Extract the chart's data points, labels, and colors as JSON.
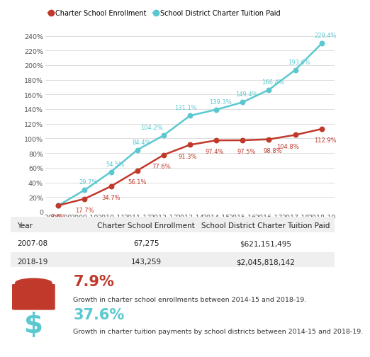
{
  "years": [
    "2008-09",
    "2009-10",
    "2010-11",
    "2011-12",
    "2012-13",
    "2013-14",
    "2014-15",
    "2015-16",
    "2016-17",
    "2017-18",
    "2018-19"
  ],
  "enrollment": [
    8.6,
    17.7,
    34.7,
    56.1,
    77.6,
    91.3,
    97.4,
    97.5,
    98.8,
    104.8,
    112.9
  ],
  "tuition": [
    8.6,
    29.7,
    54.5,
    84.4,
    104.2,
    131.1,
    139.3,
    149.4,
    166.4,
    193.6,
    229.4
  ],
  "enrollment_labels": [
    "8.6%",
    "17.7%",
    "34.7%",
    "56.1%",
    "77.6%",
    "91.3%",
    "97.4%",
    "97.5%",
    "98.8%",
    "104.8%",
    "112.9%"
  ],
  "tuition_labels": [
    "",
    "29.7%",
    "54.5%",
    "84.4%",
    "104.2%",
    "131.1%",
    "139.3%",
    "149.4%",
    "166.4%",
    "193.6%",
    "229.4%"
  ],
  "enrollment_color": "#c0392b",
  "tuition_color": "#5bc8d0",
  "yticks": [
    0,
    20,
    40,
    60,
    80,
    100,
    120,
    140,
    160,
    180,
    200,
    220,
    240
  ],
  "ytick_labels": [
    "0",
    "20%",
    "40%",
    "60%",
    "80%",
    "100%",
    "120%",
    "140%",
    "160%",
    "180%",
    "200%",
    "220%",
    "240%"
  ],
  "legend_enrollment": "Charter School Enrollment",
  "legend_tuition": "School District Charter Tuition Paid",
  "table_headers": [
    "Year",
    "Charter School Enrollment",
    "School District Charter Tuition Paid"
  ],
  "table_row1": [
    "2007-08",
    "67,275",
    "$621,151,495"
  ],
  "table_row2": [
    "2018-19",
    "143,259",
    "$2,045,818,142"
  ],
  "stat1_pct": "7.9%",
  "stat1_text": "Growth in charter school enrollments between 2014-15 and 2018-19.",
  "stat1_color": "#c0392b",
  "stat2_pct": "37.6%",
  "stat2_text": "Growth in charter tuition payments by school districts between 2014-15 and 2018-19.",
  "stat2_color": "#5bc8d0",
  "bg_color": "#ffffff",
  "grid_color": "#dddddd",
  "label_fontsize": 6.0,
  "axis_fontsize": 6.8
}
